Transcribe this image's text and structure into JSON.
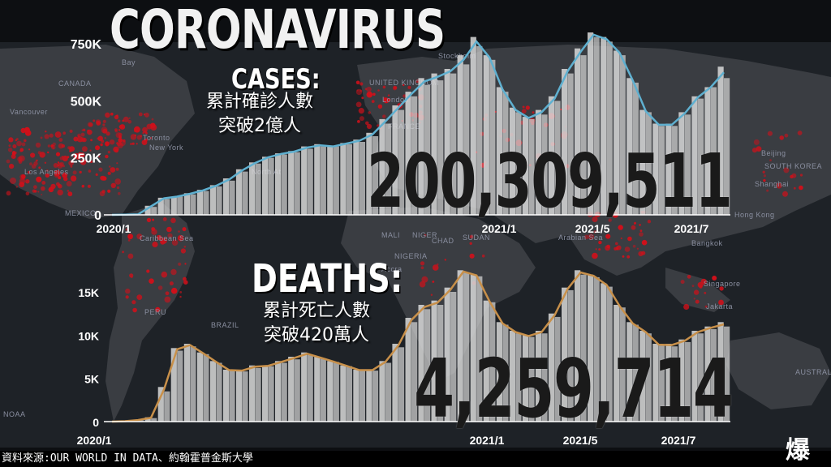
{
  "title": "CORONAVIRUS",
  "cases_heading": "CASES:",
  "cases_sub_line1": "累計確診人數",
  "cases_sub_line2": "突破2億人",
  "cases_total": "200,309,511",
  "deaths_heading": "DEATHS:",
  "deaths_sub_line1": "累計死亡人數",
  "deaths_sub_line2": "突破420萬人",
  "deaths_total": "4,259,714",
  "source": "資料來源:OUR WORLD IN DATA、約翰霍普金斯大學",
  "logo_text": "爆",
  "map_labels": [
    "CANADA",
    "Vancouver",
    "Toronto",
    "New York",
    "Los Angeles",
    "MEXICO",
    "North At",
    "Bay",
    "Caribbean Sea",
    "BRAZIL",
    "PERU",
    "UNITED KINGDOM",
    "London",
    "FRANCE",
    "Stockholm",
    "MALI",
    "NIGER",
    "CHAD",
    "SUDAN",
    "NIGERIA",
    "Accra",
    "Arabian Sea",
    "Beijing",
    "SOUTH KOREA",
    "Shanghai",
    "Hong Kong",
    "Bangkok",
    "Singapore",
    "Jakarta",
    "AUSTRALIA",
    "NOAA"
  ],
  "colors": {
    "cases_line": "#5fb0d0",
    "deaths_line": "#c8904a",
    "bars": "#d9d9d9",
    "dots": "#d0101a"
  },
  "chart_data": [
    {
      "type": "bar",
      "name": "cases",
      "x_tick_labels": [
        "2020/1",
        "2021/1",
        "2021/5",
        "2021/7"
      ],
      "y_tick_labels": [
        "0",
        "250K",
        "500K",
        "750K"
      ],
      "ylim": [
        0,
        800000
      ],
      "series": [
        {
          "values": [
            0,
            1000,
            2000,
            40000,
            75000,
            80000,
            95000,
            110000,
            130000,
            160000,
            200000,
            230000,
            255000,
            270000,
            280000,
            300000,
            310000,
            300000,
            315000,
            330000,
            360000,
            420000,
            480000,
            540000,
            600000,
            620000,
            640000,
            700000,
            780000,
            700000,
            560000,
            470000,
            430000,
            460000,
            520000,
            640000,
            730000,
            800000,
            780000,
            720000,
            600000,
            460000,
            400000,
            400000,
            450000,
            520000,
            560000,
            650000
          ]
        },
        {
          "values": [
            0,
            1000,
            2000,
            35000,
            70000,
            80000,
            90000,
            105000,
            125000,
            150000,
            190000,
            225000,
            250000,
            265000,
            275000,
            290000,
            300000,
            300000,
            310000,
            320000,
            345000,
            400000,
            460000,
            520000,
            570000,
            590000,
            620000,
            660000,
            740000,
            680000,
            540000,
            450000,
            420000,
            440000,
            500000,
            620000,
            700000,
            780000,
            760000,
            700000,
            580000,
            450000,
            390000,
            390000,
            440000,
            510000,
            560000,
            600000
          ]
        }
      ]
    },
    {
      "type": "bar",
      "name": "deaths",
      "x_tick_labels": [
        "2020/1",
        "2021/1",
        "2021/5",
        "2021/7"
      ],
      "y_tick_labels": [
        "0",
        "5K",
        "10K",
        "15K"
      ],
      "ylim": [
        0,
        18000
      ],
      "series": [
        {
          "values": [
            0,
            50,
            200,
            500,
            4000,
            8500,
            9000,
            8000,
            7000,
            6000,
            6000,
            6500,
            6500,
            7000,
            7500,
            8000,
            7500,
            7000,
            6500,
            6000,
            6000,
            7000,
            9000,
            12000,
            13500,
            14000,
            15500,
            17500,
            17000,
            14000,
            11500,
            10500,
            10000,
            10500,
            12500,
            15500,
            17500,
            17000,
            16000,
            13500,
            11500,
            10500,
            9000,
            9000,
            9500,
            10500,
            11000,
            11500
          ]
        },
        {
          "values": [
            0,
            50,
            150,
            400,
            3500,
            8200,
            8700,
            7800,
            6800,
            5900,
            5800,
            6200,
            6400,
            6800,
            7200,
            7700,
            7300,
            6900,
            6400,
            5900,
            5900,
            6800,
            8600,
            11500,
            13000,
            13500,
            15000,
            17200,
            16800,
            13800,
            11200,
            10200,
            9800,
            10200,
            12100,
            15200,
            17000,
            16700,
            15600,
            13200,
            11200,
            10200,
            8800,
            8700,
            9200,
            10200,
            10700,
            11000
          ]
        }
      ]
    }
  ]
}
